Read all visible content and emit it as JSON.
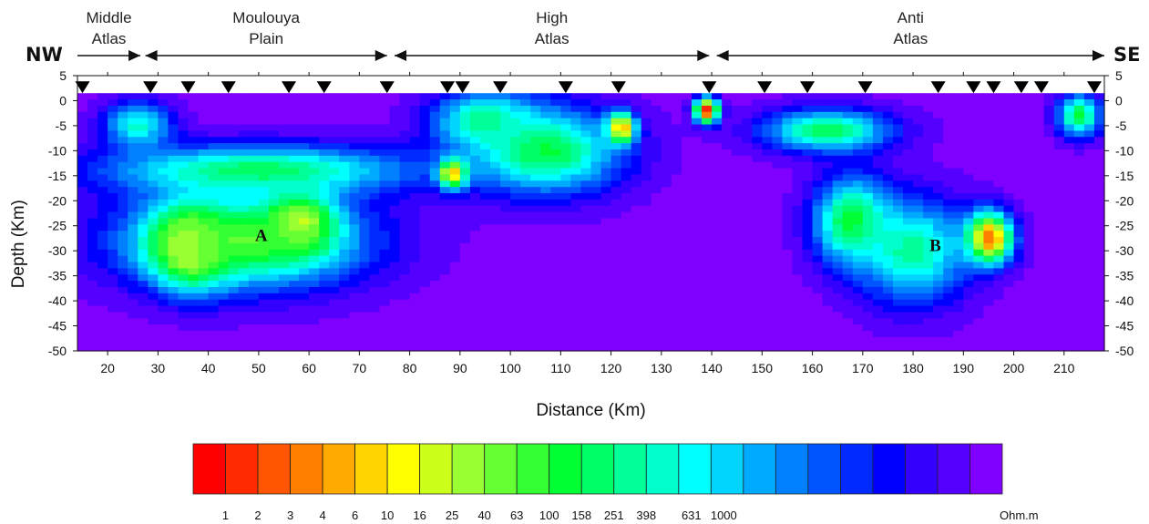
{
  "chart_data": {
    "type": "heatmap",
    "direction_labels": {
      "left": "NW",
      "right": "SE"
    },
    "regions": [
      {
        "name": "Middle\nAtlas",
        "from_km": 14,
        "to_km": 26.5
      },
      {
        "name": "Moulouya\nPlain",
        "from_km": 27.5,
        "to_km": 75.5
      },
      {
        "name": "High\nAtlas",
        "from_km": 77,
        "to_km": 139.5
      },
      {
        "name": "Anti\nAtlas",
        "from_km": 141,
        "to_km": 218
      }
    ],
    "stations_km": [
      15,
      28.5,
      36,
      44,
      56,
      63,
      75.5,
      87.5,
      90.5,
      98,
      111,
      121.5,
      139.5,
      150.5,
      159,
      170.5,
      185,
      192,
      196,
      201.5,
      205.5,
      216
    ],
    "xlabel": "Distance (Km)",
    "ylabel": "Depth (Km)",
    "xlim": [
      14,
      218
    ],
    "ylim": [
      -50,
      5
    ],
    "xticks": [
      20,
      30,
      40,
      50,
      60,
      70,
      80,
      90,
      100,
      110,
      120,
      130,
      140,
      150,
      160,
      170,
      180,
      190,
      200,
      210
    ],
    "yticks": [
      5,
      0,
      -5,
      -10,
      -15,
      -20,
      -25,
      -30,
      -35,
      -40,
      -45,
      -50
    ],
    "surface_depth_km": 1.5,
    "background_value": 1000,
    "anomalies": [
      {
        "x": 36.5,
        "y": -29,
        "rx": 9,
        "ry": 9,
        "value": 1.3
      },
      {
        "x": 58,
        "y": -24.5,
        "rx": 8,
        "ry": 7,
        "value": 2.3
      },
      {
        "x": 88.5,
        "y": -14.5,
        "rx": 3.2,
        "ry": 3.2,
        "value": 1.0
      },
      {
        "x": 122,
        "y": -5.5,
        "rx": 3.2,
        "ry": 3.5,
        "value": 1.0
      },
      {
        "x": 139,
        "y": -2,
        "rx": 2.8,
        "ry": 3,
        "value": 1.0
      },
      {
        "x": 195,
        "y": -27.5,
        "rx": 5.5,
        "ry": 6,
        "value": 1.2
      },
      {
        "x": 47,
        "y": -28,
        "rx": 28,
        "ry": 11,
        "value": 15
      },
      {
        "x": 50,
        "y": -14,
        "rx": 36,
        "ry": 6,
        "value": 30
      },
      {
        "x": 26,
        "y": -5,
        "rx": 8,
        "ry": 6,
        "value": 60
      },
      {
        "x": 107,
        "y": -10,
        "rx": 18,
        "ry": 10,
        "value": 25
      },
      {
        "x": 95,
        "y": -4,
        "rx": 12,
        "ry": 7,
        "value": 40
      },
      {
        "x": 168,
        "y": -24,
        "rx": 9,
        "ry": 10,
        "value": 20
      },
      {
        "x": 180,
        "y": -30,
        "rx": 13,
        "ry": 12,
        "value": 40
      },
      {
        "x": 163,
        "y": -6,
        "rx": 15,
        "ry": 5,
        "value": 30
      },
      {
        "x": 213,
        "y": -3,
        "rx": 5,
        "ry": 5,
        "value": 25
      }
    ],
    "colorbar": {
      "tick_labels": [
        "1",
        "2",
        "3",
        "4",
        "6",
        "10",
        "16",
        "25",
        "40",
        "63",
        "100",
        "158",
        "251",
        "398",
        "631",
        "1000"
      ],
      "unit": "Ohm.m",
      "colors": [
        "#ff0000",
        "#ff2a00",
        "#ff5500",
        "#ff8000",
        "#ffaa00",
        "#ffd400",
        "#ffff00",
        "#ccff1a",
        "#99ff33",
        "#66ff33",
        "#33ff33",
        "#00ff33",
        "#00ff66",
        "#00ff99",
        "#00ffcc",
        "#00ffff",
        "#00d4ff",
        "#00aaff",
        "#0080ff",
        "#0055ff",
        "#002aff",
        "#0000ff",
        "#3300ff",
        "#5500ff",
        "#7f00ff"
      ]
    },
    "anomaly_labels": [
      {
        "text": "A",
        "x": 50,
        "y": -27
      },
      {
        "text": "B",
        "x": 184,
        "y": -29
      }
    ]
  }
}
